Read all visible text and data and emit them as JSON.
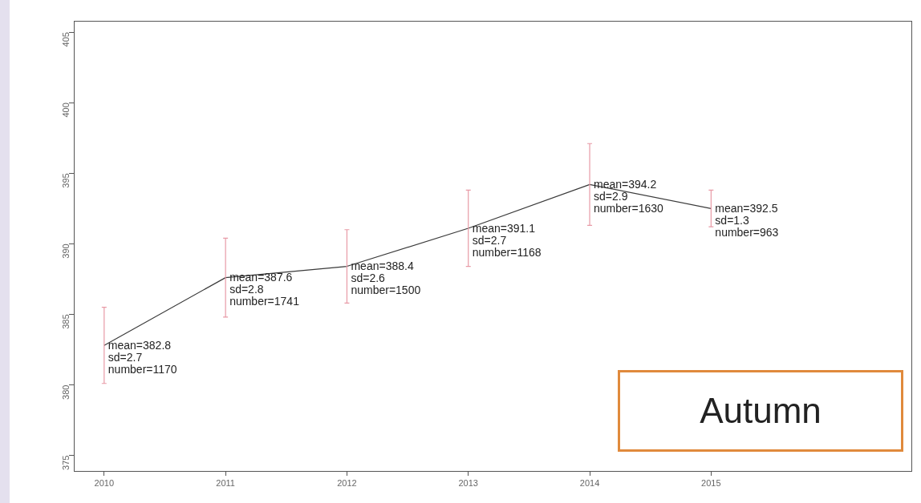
{
  "chart_data": {
    "type": "line",
    "x": [
      2010,
      2011,
      2012,
      2013,
      2014,
      2015
    ],
    "series": [
      {
        "color": "#3a3a3a",
        "values": [
          382.8,
          387.6,
          388.4,
          391.1,
          394.2,
          392.5
        ],
        "errors": [
          2.7,
          2.8,
          2.6,
          2.7,
          2.9,
          1.3
        ],
        "value_labels": [
          "mean=382.8\nsd=2.7\nnumber=1170",
          "mean=387.6\nsd=2.8\nnumber=1741",
          "mean=388.4\nsd=2.6\nnumber=1500",
          "mean=391.1\nsd=2.7\nnumber=1168",
          "mean=394.2\nsd=2.9\nnumber=1630",
          "mean=392.5\nsd=1.3\nnumber=963"
        ]
      }
    ],
    "xlim": [
      2009.75,
      2016.65
    ],
    "xticks": [
      2010,
      2011,
      2012,
      2013,
      2014,
      2015
    ],
    "ylim": [
      373.9,
      405.8
    ],
    "yticks": [
      375,
      380,
      385,
      390,
      395,
      400,
      405
    ],
    "annotations": [
      "Autumn"
    ],
    "grid": false,
    "legend": false,
    "marker": "none",
    "line_style": "solid"
  }
}
